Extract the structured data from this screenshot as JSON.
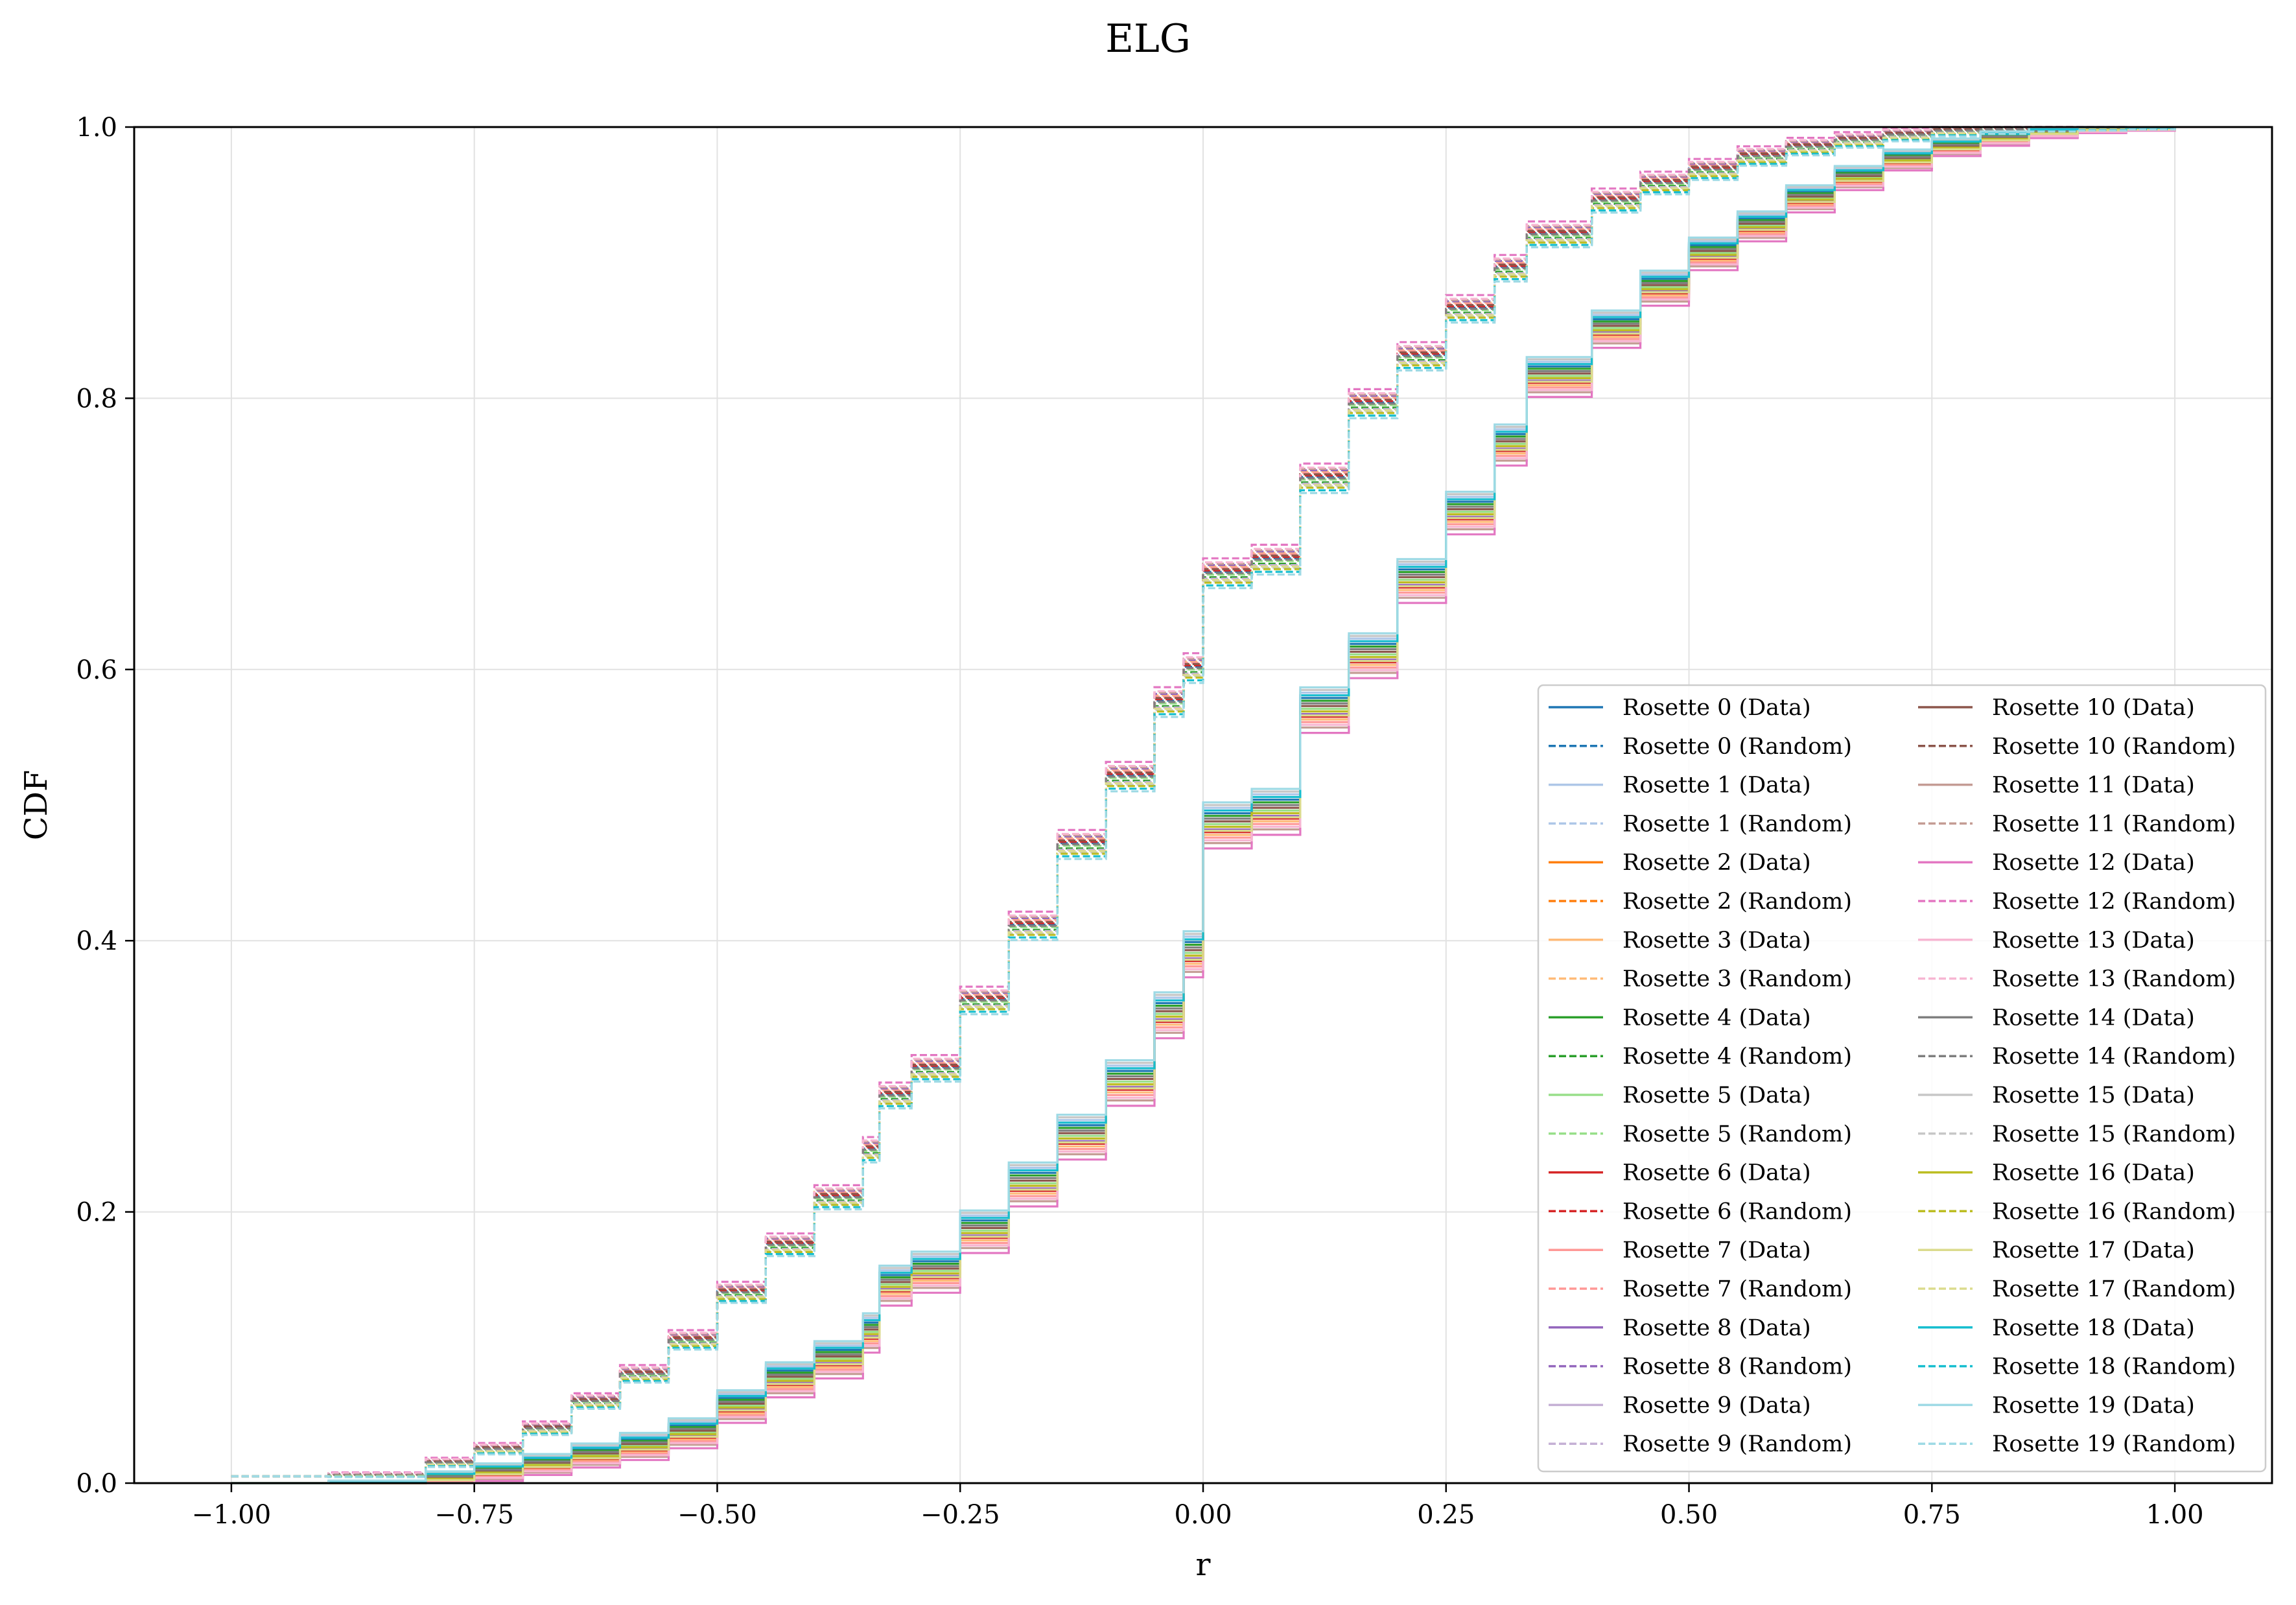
{
  "chart_data": {
    "type": "line",
    "title": "ELG",
    "xlabel": "r",
    "ylabel": "CDF",
    "xlim": [
      -1.1,
      1.1
    ],
    "ylim": [
      0.0,
      1.0
    ],
    "xticks": [
      -1.0,
      -0.75,
      -0.5,
      -0.25,
      0.0,
      0.25,
      0.5,
      0.75,
      1.0
    ],
    "xtick_labels": [
      "−1.00",
      "−0.75",
      "−0.50",
      "−0.25",
      "0.00",
      "0.25",
      "0.50",
      "0.75",
      "1.00"
    ],
    "yticks": [
      0.0,
      0.2,
      0.4,
      0.6,
      0.8,
      1.0
    ],
    "ytick_labels": [
      "0.0",
      "0.2",
      "0.4",
      "0.6",
      "0.8",
      "1.0"
    ],
    "grid": true,
    "legend_position": "lower-right",
    "legend_columns": 2,
    "curve_templates": {
      "data": {
        "x": [
          -1.0,
          -0.9,
          -0.8,
          -0.75,
          -0.7,
          -0.65,
          -0.6,
          -0.55,
          -0.5,
          -0.5,
          -0.45,
          -0.4,
          -0.35,
          -0.333,
          -0.333,
          -0.3,
          -0.25,
          -0.2,
          -0.15,
          -0.1,
          -0.05,
          -0.02,
          0.0,
          0.0,
          0.05,
          0.1,
          0.15,
          0.2,
          0.25,
          0.3,
          0.333,
          0.333,
          0.4,
          0.45,
          0.5,
          0.55,
          0.6,
          0.65,
          0.7,
          0.75,
          0.8,
          0.85,
          0.9,
          0.95,
          1.0
        ],
        "y": [
          0.0,
          0.0,
          0.005,
          0.01,
          0.016,
          0.023,
          0.03,
          0.04,
          0.05,
          0.06,
          0.08,
          0.095,
          0.115,
          0.12,
          0.15,
          0.16,
          0.19,
          0.225,
          0.26,
          0.3,
          0.35,
          0.395,
          0.405,
          0.49,
          0.5,
          0.575,
          0.615,
          0.67,
          0.72,
          0.77,
          0.775,
          0.82,
          0.855,
          0.885,
          0.91,
          0.93,
          0.95,
          0.965,
          0.978,
          0.987,
          0.993,
          0.997,
          0.999,
          0.999,
          1.0
        ]
      },
      "random": {
        "x": [
          -1.0,
          -0.9,
          -0.8,
          -0.75,
          -0.7,
          -0.65,
          -0.6,
          -0.55,
          -0.5,
          -0.5,
          -0.45,
          -0.4,
          -0.35,
          -0.333,
          -0.333,
          -0.3,
          -0.25,
          -0.2,
          -0.15,
          -0.1,
          -0.05,
          -0.02,
          0.0,
          0.0,
          0.05,
          0.1,
          0.15,
          0.2,
          0.25,
          0.3,
          0.333,
          0.333,
          0.4,
          0.45,
          0.5,
          0.55,
          0.6,
          0.65,
          0.7,
          0.75,
          0.8,
          0.85,
          0.9,
          0.95,
          1.0
        ],
        "y": [
          0.005,
          0.006,
          0.015,
          0.025,
          0.04,
          0.06,
          0.08,
          0.105,
          0.12,
          0.14,
          0.175,
          0.21,
          0.245,
          0.245,
          0.285,
          0.305,
          0.355,
          0.41,
          0.47,
          0.52,
          0.575,
          0.6,
          0.6,
          0.67,
          0.68,
          0.74,
          0.795,
          0.83,
          0.865,
          0.895,
          0.9,
          0.92,
          0.945,
          0.958,
          0.968,
          0.978,
          0.985,
          0.99,
          0.994,
          0.997,
          0.998,
          0.999,
          0.999,
          0.999,
          1.0
        ]
      }
    },
    "series": [
      {
        "name": "Rosette 0 (Data)",
        "color": "#1f77b4",
        "style": "solid",
        "curve": "data",
        "offset": 0.004
      },
      {
        "name": "Rosette 0 (Random)",
        "color": "#1f77b4",
        "style": "dashed",
        "curve": "random",
        "offset": 0.002
      },
      {
        "name": "Rosette 1 (Data)",
        "color": "#aec7e8",
        "style": "solid",
        "curve": "data",
        "offset": 0.008
      },
      {
        "name": "Rosette 1 (Random)",
        "color": "#aec7e8",
        "style": "dashed",
        "curve": "random",
        "offset": -0.004
      },
      {
        "name": "Rosette 2 (Data)",
        "color": "#ff7f0e",
        "style": "solid",
        "curve": "data",
        "offset": -0.006
      },
      {
        "name": "Rosette 2 (Random)",
        "color": "#ff7f0e",
        "style": "dashed",
        "curve": "random",
        "offset": 0.004
      },
      {
        "name": "Rosette 3 (Data)",
        "color": "#ffbb78",
        "style": "solid",
        "curve": "data",
        "offset": -0.012
      },
      {
        "name": "Rosette 3 (Random)",
        "color": "#ffbb78",
        "style": "dashed",
        "curve": "random",
        "offset": 0.006
      },
      {
        "name": "Rosette 4 (Data)",
        "color": "#2ca02c",
        "style": "solid",
        "curve": "data",
        "offset": 0.002
      },
      {
        "name": "Rosette 4 (Random)",
        "color": "#2ca02c",
        "style": "dashed",
        "curve": "random",
        "offset": -0.002
      },
      {
        "name": "Rosette 5 (Data)",
        "color": "#98df8a",
        "style": "solid",
        "curve": "data",
        "offset": -0.004
      },
      {
        "name": "Rosette 5 (Random)",
        "color": "#98df8a",
        "style": "dashed",
        "curve": "random",
        "offset": 0.0
      },
      {
        "name": "Rosette 6 (Data)",
        "color": "#d62728",
        "style": "solid",
        "curve": "data",
        "offset": -0.01
      },
      {
        "name": "Rosette 6 (Random)",
        "color": "#d62728",
        "style": "dashed",
        "curve": "random",
        "offset": 0.003
      },
      {
        "name": "Rosette 7 (Data)",
        "color": "#ff9896",
        "style": "solid",
        "curve": "data",
        "offset": -0.014
      },
      {
        "name": "Rosette 7 (Random)",
        "color": "#ff9896",
        "style": "dashed",
        "curve": "random",
        "offset": 0.005
      },
      {
        "name": "Rosette 8 (Data)",
        "color": "#9467bd",
        "style": "solid",
        "curve": "data",
        "offset": -0.008
      },
      {
        "name": "Rosette 8 (Random)",
        "color": "#9467bd",
        "style": "dashed",
        "curve": "random",
        "offset": 0.007
      },
      {
        "name": "Rosette 9 (Data)",
        "color": "#c5b0d5",
        "style": "solid",
        "curve": "data",
        "offset": 0.006
      },
      {
        "name": "Rosette 9 (Random)",
        "color": "#c5b0d5",
        "style": "dashed",
        "curve": "random",
        "offset": -0.003
      },
      {
        "name": "Rosette 10 (Data)",
        "color": "#8c564b",
        "style": "solid",
        "curve": "data",
        "offset": -0.002
      },
      {
        "name": "Rosette 10 (Random)",
        "color": "#8c564b",
        "style": "dashed",
        "curve": "random",
        "offset": 0.004
      },
      {
        "name": "Rosette 11 (Data)",
        "color": "#c49c94",
        "style": "solid",
        "curve": "data",
        "offset": -0.018
      },
      {
        "name": "Rosette 11 (Random)",
        "color": "#c49c94",
        "style": "dashed",
        "curve": "random",
        "offset": 0.008
      },
      {
        "name": "Rosette 12 (Data)",
        "color": "#e377c2",
        "style": "solid",
        "curve": "data",
        "offset": -0.022
      },
      {
        "name": "Rosette 12 (Random)",
        "color": "#e377c2",
        "style": "dashed",
        "curve": "random",
        "offset": 0.012
      },
      {
        "name": "Rosette 13 (Data)",
        "color": "#f7b6d2",
        "style": "solid",
        "curve": "data",
        "offset": -0.016
      },
      {
        "name": "Rosette 13 (Random)",
        "color": "#f7b6d2",
        "style": "dashed",
        "curve": "random",
        "offset": 0.009
      },
      {
        "name": "Rosette 14 (Data)",
        "color": "#7f7f7f",
        "style": "solid",
        "curve": "data",
        "offset": 0.0
      },
      {
        "name": "Rosette 14 (Random)",
        "color": "#7f7f7f",
        "style": "dashed",
        "curve": "random",
        "offset": 0.001
      },
      {
        "name": "Rosette 15 (Data)",
        "color": "#c7c7c7",
        "style": "solid",
        "curve": "data",
        "offset": 0.01
      },
      {
        "name": "Rosette 15 (Random)",
        "color": "#c7c7c7",
        "style": "dashed",
        "curve": "random",
        "offset": -0.005
      },
      {
        "name": "Rosette 16 (Data)",
        "color": "#bcbd22",
        "style": "solid",
        "curve": "data",
        "offset": -0.006
      },
      {
        "name": "Rosette 16 (Random)",
        "color": "#bcbd22",
        "style": "dashed",
        "curve": "random",
        "offset": -0.006
      },
      {
        "name": "Rosette 17 (Data)",
        "color": "#dbdb8d",
        "style": "solid",
        "curve": "data",
        "offset": -0.009
      },
      {
        "name": "Rosette 17 (Random)",
        "color": "#dbdb8d",
        "style": "dashed",
        "curve": "random",
        "offset": -0.004
      },
      {
        "name": "Rosette 18 (Data)",
        "color": "#17becf",
        "style": "solid",
        "curve": "data",
        "offset": 0.006
      },
      {
        "name": "Rosette 18 (Random)",
        "color": "#17becf",
        "style": "dashed",
        "curve": "random",
        "offset": -0.008
      },
      {
        "name": "Rosette 19 (Data)",
        "color": "#9edae5",
        "style": "solid",
        "curve": "data",
        "offset": 0.012
      },
      {
        "name": "Rosette 19 (Random)",
        "color": "#9edae5",
        "style": "dashed",
        "curve": "random",
        "offset": -0.01
      }
    ]
  }
}
